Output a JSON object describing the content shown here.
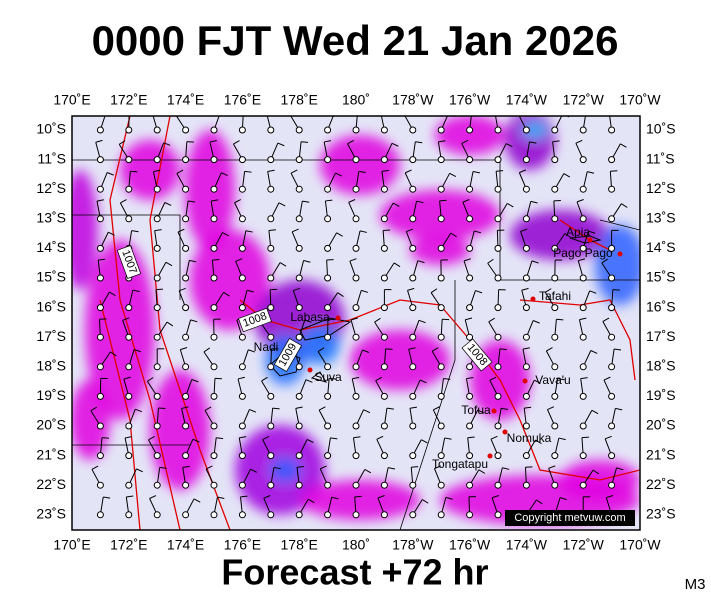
{
  "header": {
    "title": "0000 FJT Wed 21 Jan 2026"
  },
  "map": {
    "lon_labels": [
      "170˚E",
      "172˚E",
      "174˚E",
      "176˚E",
      "178˚E",
      "180˚",
      "178˚W",
      "176˚W",
      "174˚W",
      "172˚W",
      "170˚W"
    ],
    "lat_labels": [
      "10˚S",
      "11˚S",
      "12˚S",
      "13˚S",
      "14˚S",
      "15˚S",
      "16˚S",
      "17˚S",
      "18˚S",
      "19˚S",
      "20˚S",
      "21˚S",
      "22˚S",
      "23˚S"
    ],
    "places": [
      {
        "label": "Apia"
      },
      {
        "label": "Pago Pago"
      },
      {
        "label": "Tafahi"
      },
      {
        "label": "Labasa"
      },
      {
        "label": "Nadi"
      },
      {
        "label": "Suva"
      },
      {
        "label": "Vava'u"
      },
      {
        "label": "Tofua"
      },
      {
        "label": "Nomuka"
      },
      {
        "label": "Tongatapu"
      }
    ],
    "isobar_labels": [
      "1007",
      "1008",
      "1009",
      "1008"
    ],
    "copyright": "Copyright metvuw.com"
  },
  "footer": {
    "forecast": "Forecast +72 hr",
    "code": "M3"
  }
}
